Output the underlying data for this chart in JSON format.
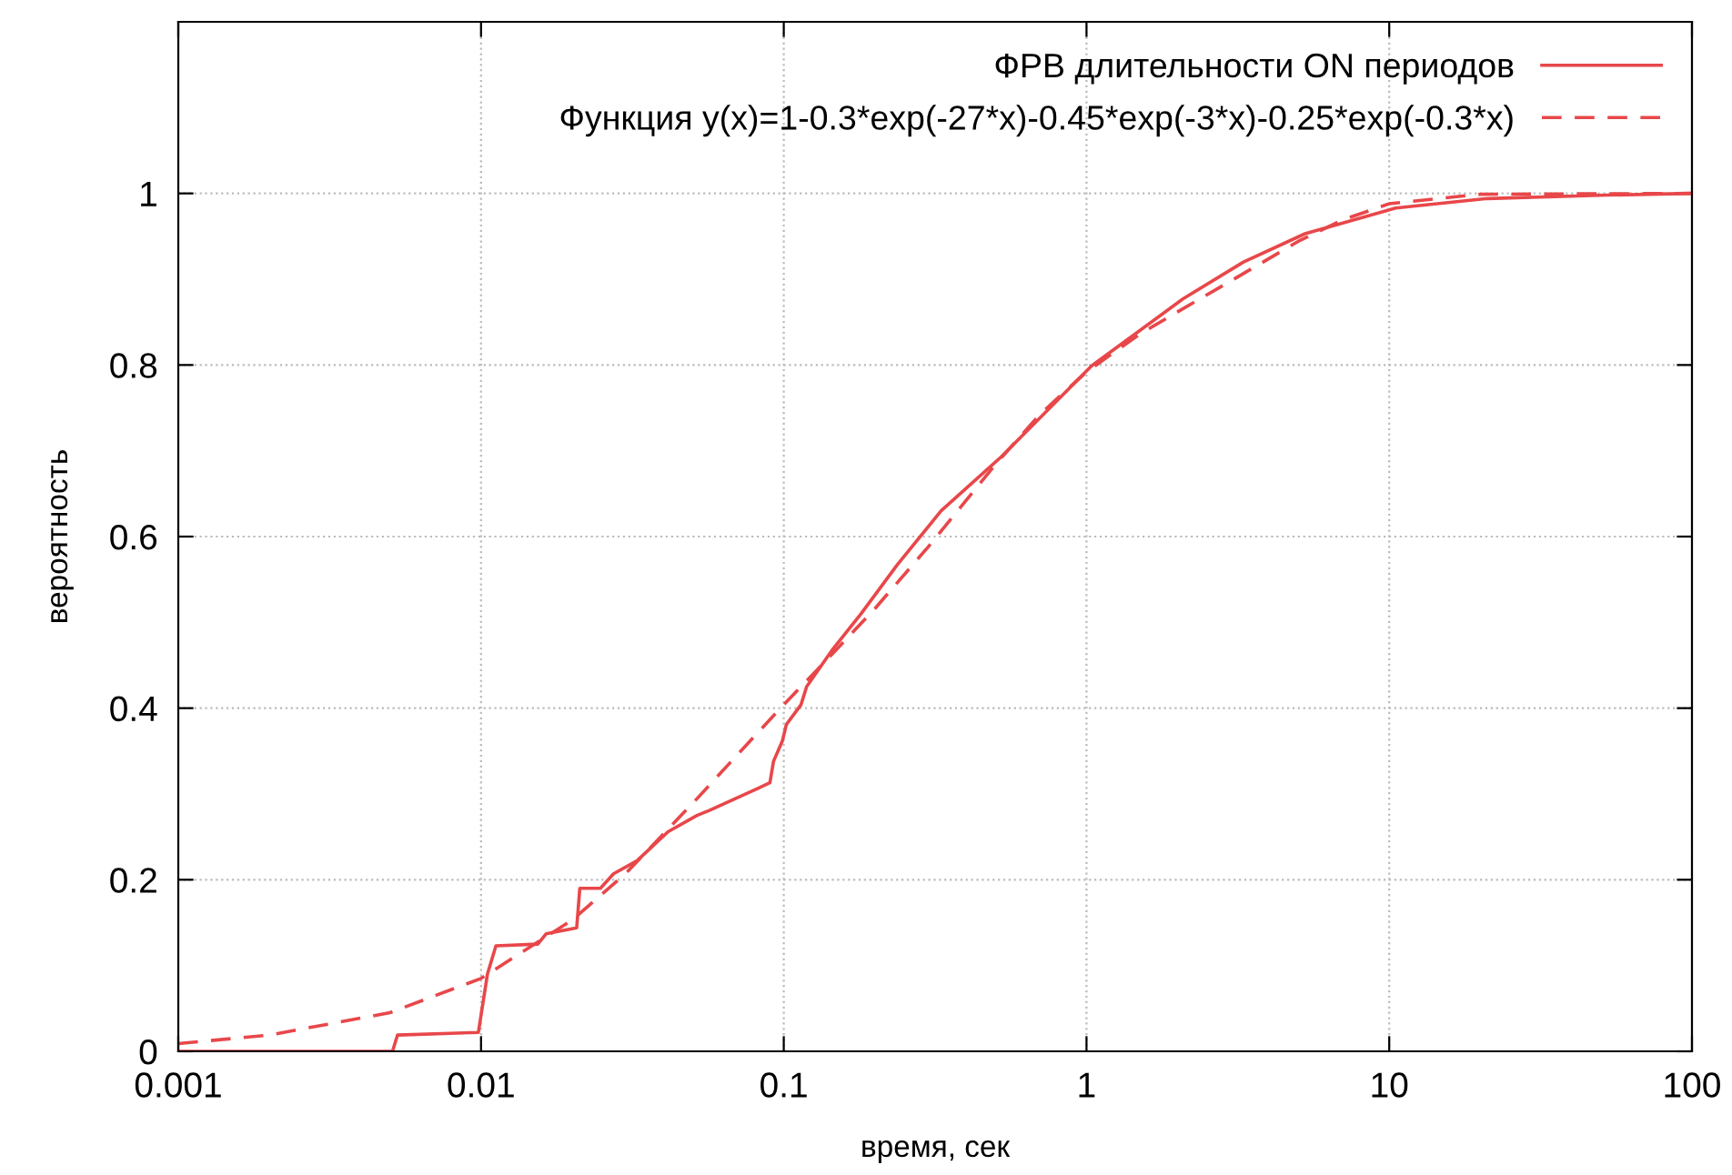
{
  "chart_data": {
    "type": "line",
    "xlabel": "время, сек",
    "ylabel": "вероятность",
    "log": "x",
    "xlim": [
      0.001,
      100
    ],
    "ylim": [
      0,
      1.2
    ],
    "xticks": [
      0.001,
      0.01,
      0.1,
      1,
      10,
      100
    ],
    "yticks": [
      0,
      0.2,
      0.4,
      0.6,
      0.8,
      1
    ],
    "grid": true,
    "legend": "top right",
    "series": [
      {
        "name": "ФРВ длительности ON периодов",
        "color": "#e8474a",
        "line_style": "solid",
        "x": [
          0.001,
          0.0051,
          0.0053,
          0.0098,
          0.0105,
          0.0112,
          0.0154,
          0.0164,
          0.0207,
          0.0212,
          0.0248,
          0.0274,
          0.0327,
          0.0415,
          0.0517,
          0.057,
          0.0828,
          0.09,
          0.0925,
          0.099,
          0.102,
          0.114,
          0.119,
          0.144,
          0.18,
          0.237,
          0.331,
          0.523,
          1.04,
          2.08,
          3.3,
          5.27,
          10.5,
          21.1,
          52.5,
          100
        ],
        "values": [
          0,
          0,
          0.019,
          0.022,
          0.09,
          0.123,
          0.125,
          0.137,
          0.144,
          0.19,
          0.19,
          0.207,
          0.222,
          0.256,
          0.275,
          0.281,
          0.307,
          0.313,
          0.338,
          0.362,
          0.381,
          0.404,
          0.425,
          0.467,
          0.51,
          0.567,
          0.63,
          0.693,
          0.799,
          0.877,
          0.92,
          0.953,
          0.983,
          0.994,
          0.998,
          1
        ]
      },
      {
        "name": "Функция y(x)=1-0.3*exp(-27*x)-0.45*exp(-3*x)-0.25*exp(-0.3*x)",
        "color": "#e8474a",
        "line_style": "dashed",
        "x": [
          0.001,
          0.002,
          0.005,
          0.01,
          0.02,
          0.03,
          0.05,
          0.07,
          0.1,
          0.15,
          0.2,
          0.3,
          0.5,
          0.7,
          1,
          1.5,
          2,
          3,
          5,
          7,
          10,
          20,
          100
        ],
        "values": [
          0.009,
          0.019,
          0.045,
          0.085,
          0.153,
          0.207,
          0.289,
          0.345,
          0.404,
          0.469,
          0.516,
          0.588,
          0.684,
          0.742,
          0.792,
          0.836,
          0.862,
          0.898,
          0.944,
          0.969,
          0.988,
          0.999,
          1
        ]
      }
    ]
  }
}
